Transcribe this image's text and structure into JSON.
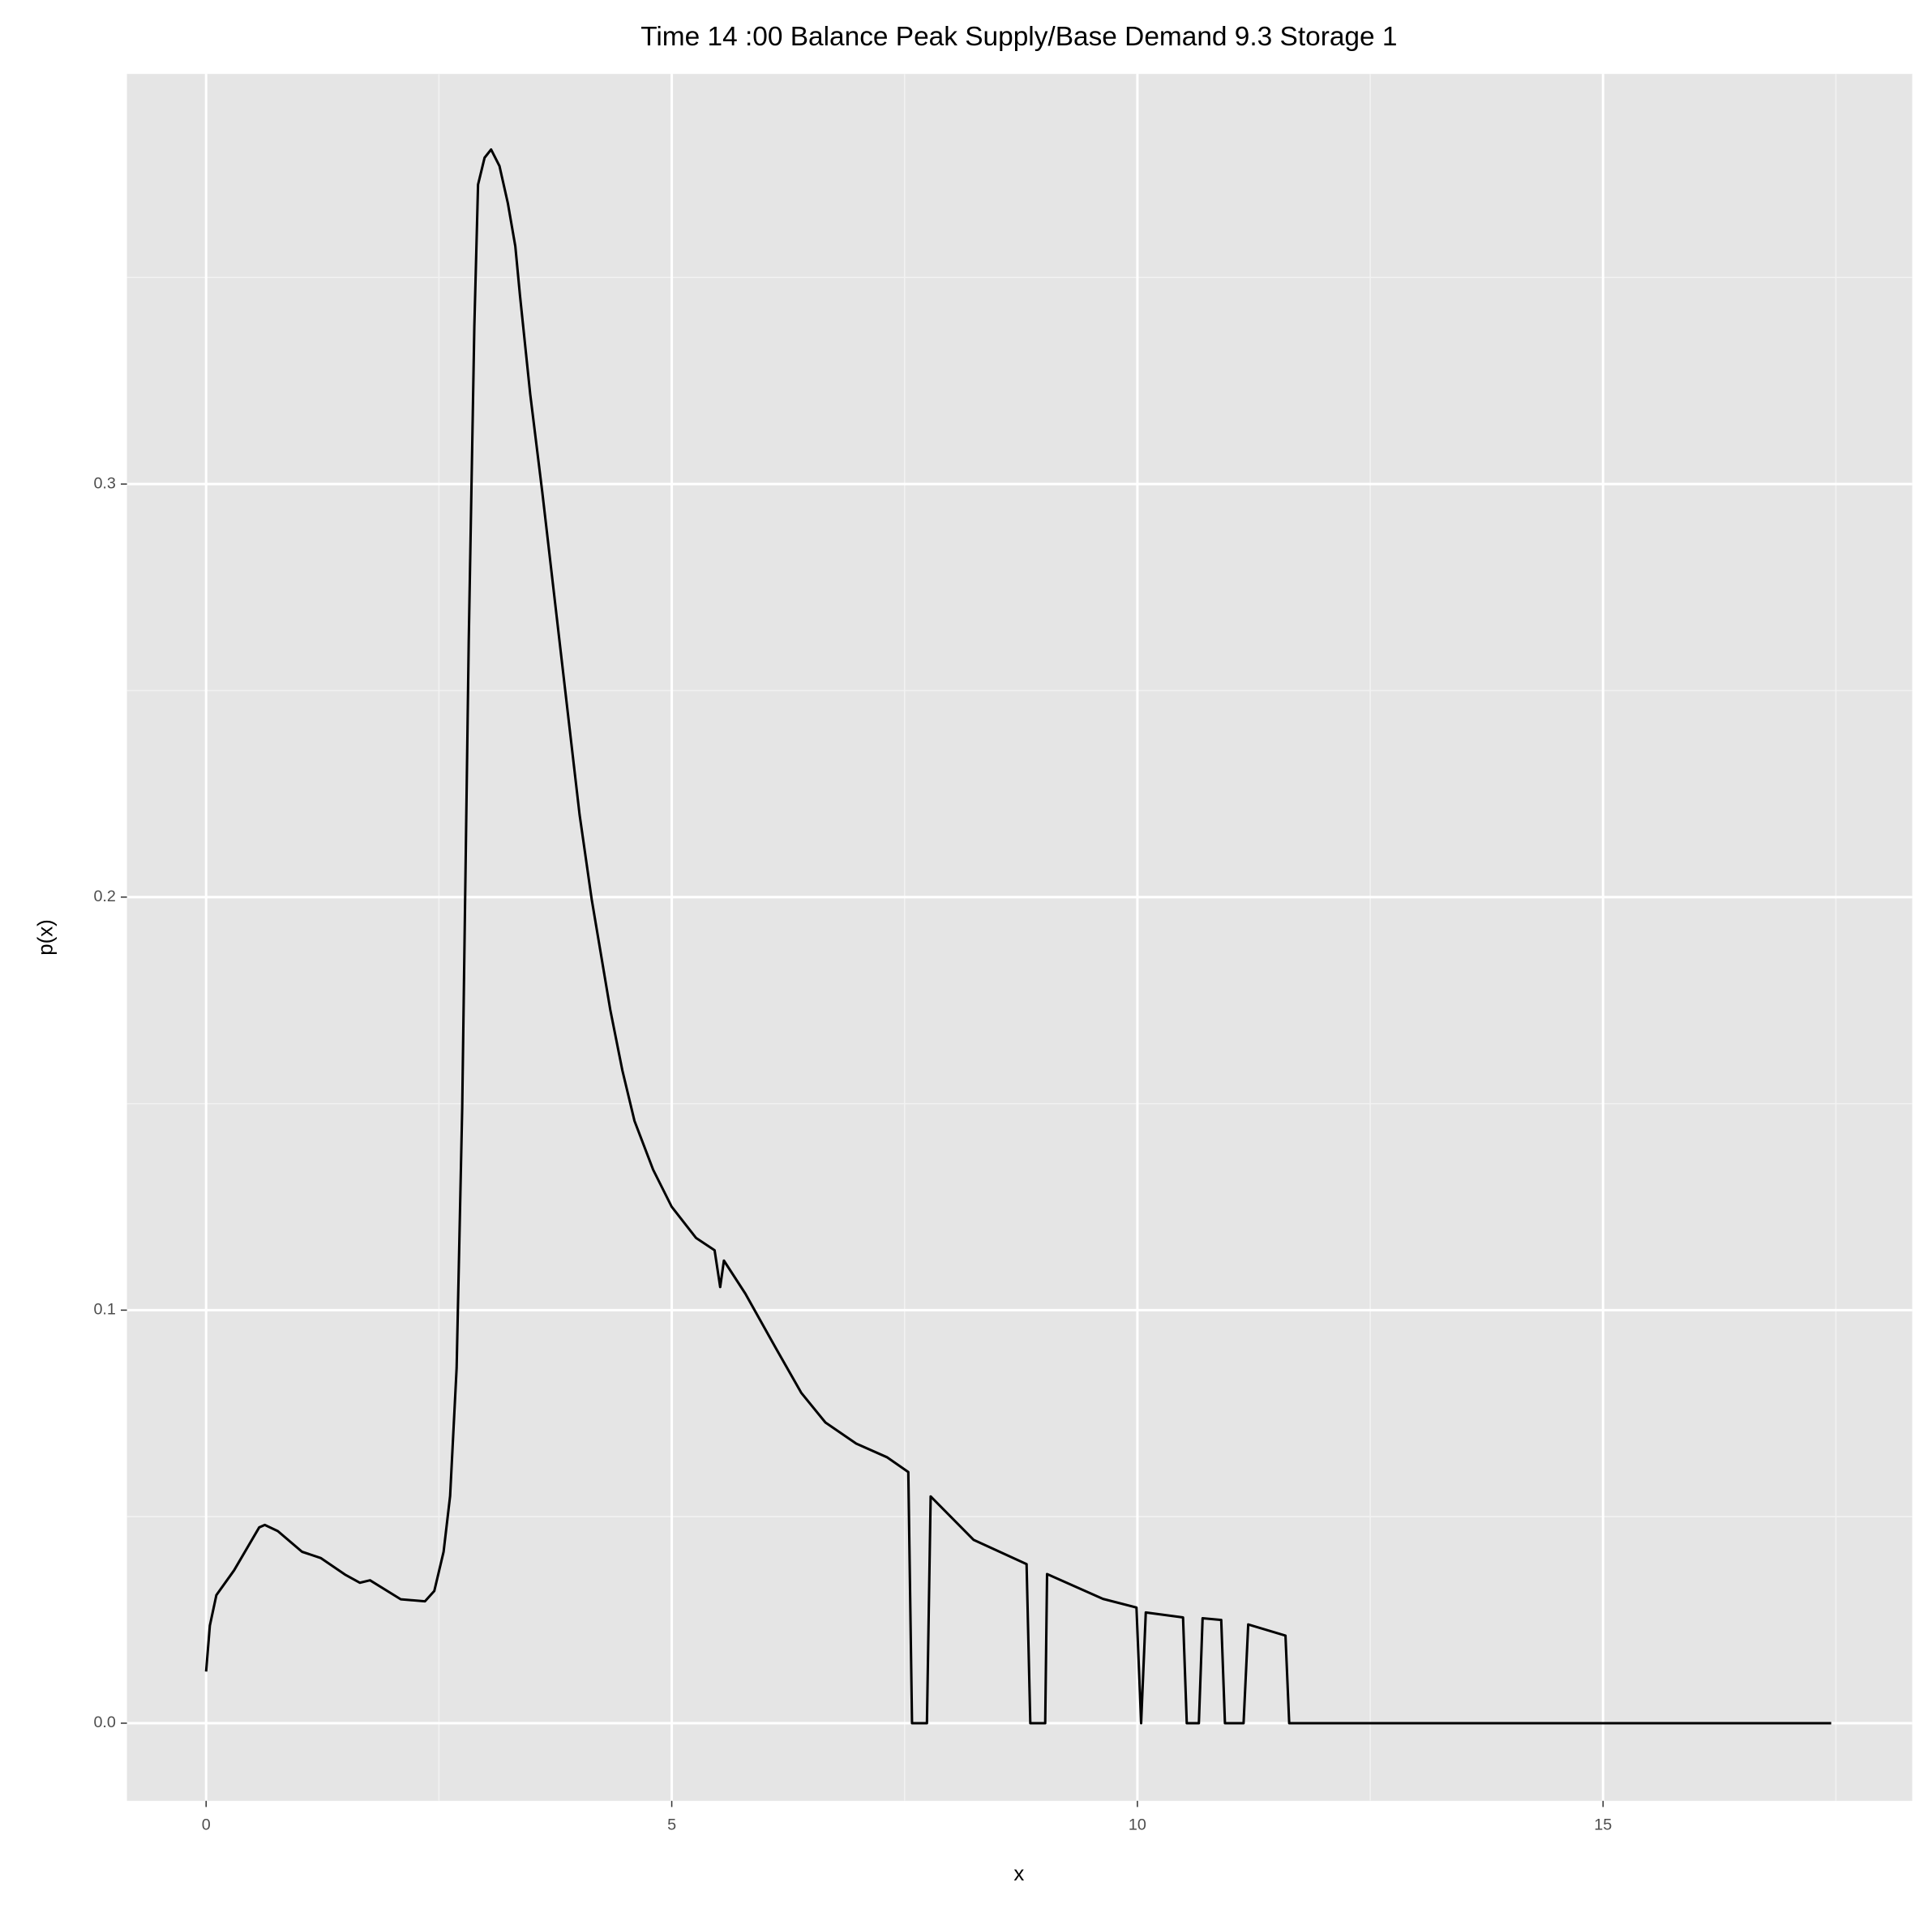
{
  "chart_data": {
    "type": "line",
    "title": "Time  14 :00  Balance   Peak Supply/Base Demand  9.3 Storage 1",
    "x_label": "x",
    "y_label": "p(x)",
    "xlim": [
      -0.85,
      18.32
    ],
    "ylim": [
      -0.0188,
      0.3993
    ],
    "xticks": [
      0,
      5,
      10,
      15
    ],
    "yticks": [
      {
        "value": 0,
        "label": "0.0"
      },
      0.1,
      0.2,
      0.3
    ],
    "grid": true,
    "series": [
      {
        "color": "#000000",
        "x": [
          0,
          0.04,
          0.11,
          0.3,
          0.57,
          0.63,
          0.77,
          1.03,
          1.23,
          1.49,
          1.65,
          1.76,
          2.09,
          2.35,
          2.45,
          2.55,
          2.62,
          2.69,
          2.75,
          2.82,
          2.88,
          2.92,
          2.99,
          3.06,
          3.15,
          3.24,
          3.32,
          3.37,
          3.48,
          3.61,
          3.81,
          4.01,
          4.14,
          4.34,
          4.47,
          4.6,
          4.8,
          5.0,
          5.26,
          5.46,
          5.52,
          5.56,
          5.79,
          6.12,
          6.39,
          6.65,
          6.98,
          7.31,
          7.54,
          7.58,
          7.74,
          7.78,
          8.24,
          8.81,
          8.85,
          9.01,
          9.03,
          9.63,
          9.99,
          10.04,
          10.09,
          10.49,
          10.53,
          10.66,
          10.7,
          10.9,
          10.94,
          11.14,
          11.19,
          11.59,
          11.63,
          17.45
        ],
        "values": [
          0.0125,
          0.0236,
          0.031,
          0.037,
          0.0474,
          0.048,
          0.0465,
          0.0415,
          0.04,
          0.036,
          0.034,
          0.0346,
          0.03,
          0.0295,
          0.032,
          0.0415,
          0.055,
          0.086,
          0.149,
          0.262,
          0.338,
          0.3725,
          0.379,
          0.381,
          0.377,
          0.368,
          0.3576,
          0.3457,
          0.3218,
          0.298,
          0.259,
          0.22,
          0.1995,
          0.1727,
          0.158,
          0.1458,
          0.134,
          0.125,
          0.1175,
          0.1145,
          0.1056,
          0.112,
          0.104,
          0.0907,
          0.08,
          0.0728,
          0.0677,
          0.0644,
          0.0608,
          0,
          0,
          0.0549,
          0.0444,
          0.0385,
          0,
          0,
          0.0361,
          0.0301,
          0.028,
          0,
          0.0268,
          0.0256,
          0,
          0,
          0.0254,
          0.025,
          0,
          0,
          0.0239,
          0.0212,
          0,
          0
        ]
      }
    ]
  }
}
